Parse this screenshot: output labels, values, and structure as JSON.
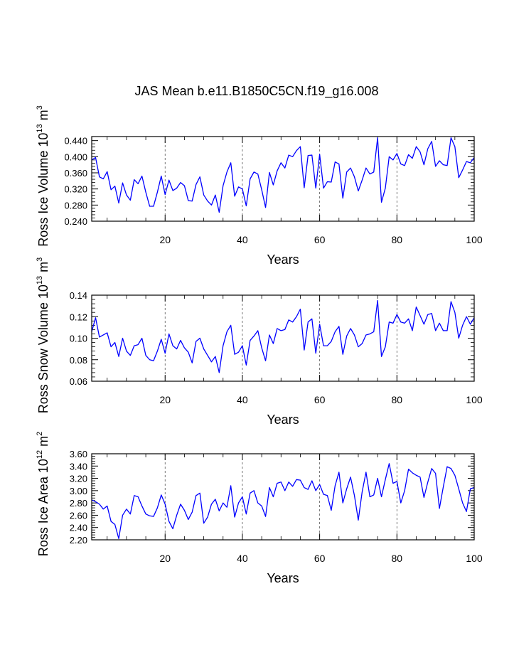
{
  "title": "JAS Mean b.e11.B1850C5CN.f19_g16.008",
  "line_color": "#0000ff",
  "chart_data": [
    {
      "type": "line",
      "ylabel_main": "Ross Ice Volume 10",
      "ylabel_exp": "13",
      "ylabel_unit": " m",
      "ylabel_unit_exp": "3",
      "xlabel": "Years",
      "xlim": [
        1,
        100
      ],
      "ylim": [
        0.24,
        0.45
      ],
      "xticks": [
        20,
        40,
        60,
        80,
        100
      ],
      "xtick_labels": [
        "20",
        "40",
        "60",
        "80",
        "100"
      ],
      "yticks": [
        0.24,
        0.28,
        0.32,
        0.36,
        0.4,
        0.44
      ],
      "ytick_labels": [
        "0.240",
        "0.280",
        "0.320",
        "0.360",
        "0.400",
        "0.440"
      ],
      "vlines": [
        20,
        40,
        60,
        80
      ],
      "series": [
        {
          "name": "Ross Ice Volume",
          "x_start": 1,
          "values": [
            0.392,
            0.398,
            0.35,
            0.345,
            0.363,
            0.318,
            0.327,
            0.285,
            0.335,
            0.305,
            0.292,
            0.343,
            0.333,
            0.352,
            0.312,
            0.277,
            0.277,
            0.312,
            0.352,
            0.306,
            0.342,
            0.316,
            0.322,
            0.336,
            0.328,
            0.291,
            0.29,
            0.331,
            0.35,
            0.305,
            0.29,
            0.28,
            0.305,
            0.262,
            0.328,
            0.362,
            0.385,
            0.302,
            0.325,
            0.32,
            0.278,
            0.345,
            0.362,
            0.357,
            0.318,
            0.274,
            0.361,
            0.33,
            0.365,
            0.385,
            0.372,
            0.404,
            0.4,
            0.415,
            0.425,
            0.323,
            0.403,
            0.404,
            0.322,
            0.406,
            0.322,
            0.338,
            0.337,
            0.387,
            0.382,
            0.297,
            0.362,
            0.372,
            0.35,
            0.315,
            0.342,
            0.372,
            0.357,
            0.362,
            0.447,
            0.287,
            0.322,
            0.4,
            0.392,
            0.408,
            0.382,
            0.378,
            0.405,
            0.396,
            0.425,
            0.412,
            0.38,
            0.42,
            0.438,
            0.376,
            0.39,
            0.38,
            0.378,
            0.447,
            0.425,
            0.348,
            0.367,
            0.388,
            0.385,
            0.398
          ]
        }
      ]
    },
    {
      "type": "line",
      "ylabel_main": "Ross Snow Volume 10",
      "ylabel_exp": "13",
      "ylabel_unit": " m",
      "ylabel_unit_exp": "3",
      "xlabel": "Years",
      "xlim": [
        1,
        100
      ],
      "ylim": [
        0.06,
        0.14
      ],
      "xticks": [
        20,
        40,
        60,
        80,
        100
      ],
      "xtick_labels": [
        "20",
        "40",
        "60",
        "80",
        "100"
      ],
      "yticks": [
        0.06,
        0.08,
        0.1,
        0.12,
        0.14
      ],
      "ytick_labels": [
        "0.06",
        "0.08",
        "0.10",
        "0.12",
        "0.14"
      ],
      "vlines": [
        20,
        40,
        60,
        80
      ],
      "series": [
        {
          "name": "Ross Snow Volume",
          "x_start": 1,
          "values": [
            0.106,
            0.119,
            0.101,
            0.103,
            0.105,
            0.092,
            0.096,
            0.083,
            0.1,
            0.088,
            0.084,
            0.093,
            0.094,
            0.1,
            0.084,
            0.08,
            0.079,
            0.088,
            0.099,
            0.086,
            0.104,
            0.093,
            0.09,
            0.098,
            0.091,
            0.087,
            0.077,
            0.097,
            0.1,
            0.09,
            0.084,
            0.078,
            0.083,
            0.068,
            0.093,
            0.106,
            0.112,
            0.085,
            0.087,
            0.093,
            0.075,
            0.098,
            0.102,
            0.107,
            0.091,
            0.079,
            0.103,
            0.095,
            0.109,
            0.107,
            0.108,
            0.117,
            0.115,
            0.12,
            0.127,
            0.089,
            0.115,
            0.118,
            0.086,
            0.113,
            0.093,
            0.093,
            0.097,
            0.106,
            0.111,
            0.085,
            0.102,
            0.109,
            0.103,
            0.092,
            0.095,
            0.103,
            0.104,
            0.106,
            0.135,
            0.083,
            0.092,
            0.115,
            0.114,
            0.122,
            0.115,
            0.114,
            0.118,
            0.107,
            0.129,
            0.121,
            0.113,
            0.122,
            0.123,
            0.107,
            0.114,
            0.107,
            0.107,
            0.134,
            0.124,
            0.1,
            0.112,
            0.12,
            0.113,
            0.119
          ]
        }
      ]
    },
    {
      "type": "line",
      "ylabel_main": "Ross Ice Area 10",
      "ylabel_exp": "12",
      "ylabel_unit": " m",
      "ylabel_unit_exp": "2",
      "xlabel": "Years",
      "xlim": [
        1,
        100
      ],
      "ylim": [
        2.2,
        3.6
      ],
      "xticks": [
        20,
        40,
        60,
        80,
        100
      ],
      "xtick_labels": [
        "20",
        "40",
        "60",
        "80",
        "100"
      ],
      "yticks": [
        2.2,
        2.4,
        2.6,
        2.8,
        3.0,
        3.2,
        3.4,
        3.6
      ],
      "ytick_labels": [
        "2.20",
        "2.40",
        "2.60",
        "2.80",
        "3.00",
        "3.20",
        "3.40",
        "3.60"
      ],
      "vlines": [
        20,
        40,
        60,
        80
      ],
      "series": [
        {
          "name": "Ross Ice Area",
          "x_start": 1,
          "values": [
            2.85,
            2.82,
            2.78,
            2.7,
            2.75,
            2.5,
            2.45,
            2.22,
            2.6,
            2.7,
            2.62,
            2.92,
            2.9,
            2.75,
            2.62,
            2.59,
            2.58,
            2.72,
            2.93,
            2.78,
            2.5,
            2.38,
            2.6,
            2.78,
            2.68,
            2.53,
            2.65,
            2.92,
            2.96,
            2.47,
            2.57,
            2.78,
            2.86,
            2.67,
            2.8,
            2.73,
            3.08,
            2.57,
            2.8,
            2.9,
            2.62,
            2.96,
            3.0,
            2.8,
            2.75,
            2.58,
            3.05,
            2.9,
            3.12,
            3.14,
            3.0,
            3.14,
            3.07,
            3.18,
            3.17,
            3.05,
            3.02,
            3.16,
            3.0,
            3.1,
            2.94,
            2.92,
            2.68,
            3.08,
            3.3,
            2.8,
            3.03,
            3.22,
            2.92,
            2.52,
            2.98,
            3.3,
            2.9,
            2.93,
            3.2,
            2.9,
            3.18,
            3.44,
            3.12,
            3.15,
            2.8,
            3.0,
            3.35,
            3.29,
            3.25,
            3.22,
            2.89,
            3.14,
            3.36,
            3.28,
            2.71,
            3.06,
            3.39,
            3.36,
            3.25,
            3.03,
            2.8,
            2.66,
            3.03,
            3.05
          ]
        }
      ]
    }
  ]
}
